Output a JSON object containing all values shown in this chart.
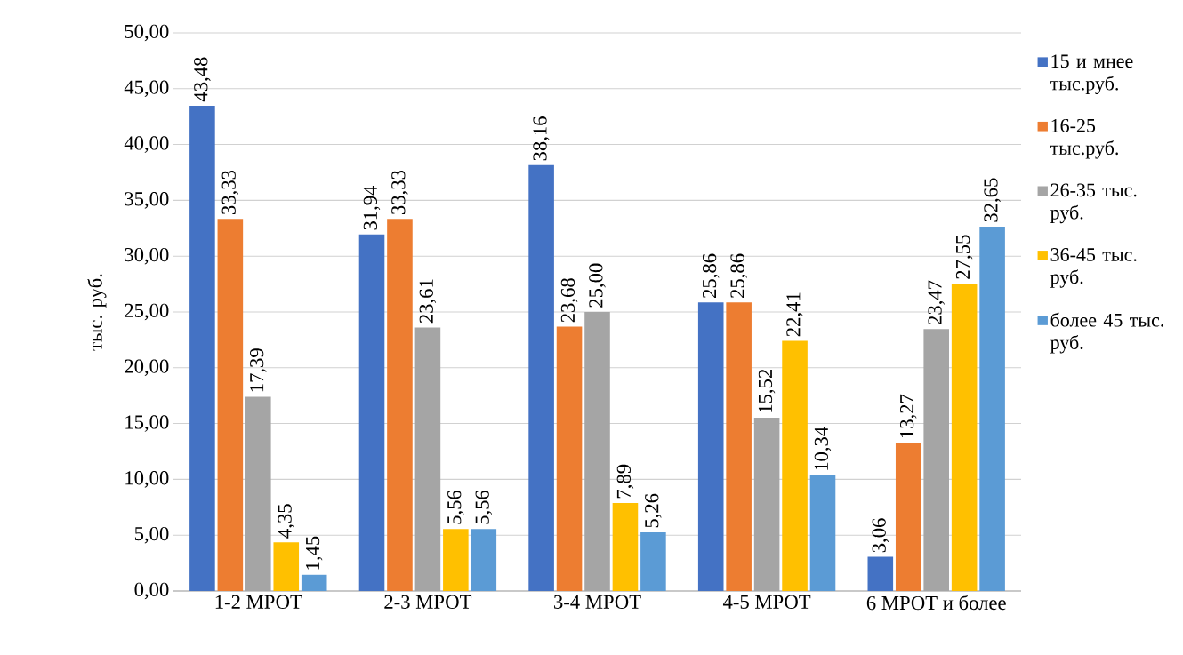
{
  "chart_data": {
    "type": "bar",
    "ylabel": "тыс. руб.",
    "categories": [
      "1-2 МРОТ",
      "2-3 МРОТ",
      "3-4 МРОТ",
      "4-5 МРОТ",
      "6 МРОТ и более"
    ],
    "series": [
      {
        "name": "15 и мнее тыс.руб.",
        "color": "#4472c4",
        "values": [
          43.48,
          31.94,
          38.16,
          25.86,
          3.06
        ],
        "value_labels": [
          "43,48",
          "31,94",
          "38,16",
          "25,86",
          "3,06"
        ]
      },
      {
        "name": "16-25 тыс.руб.",
        "color": "#ed7d31",
        "values": [
          33.33,
          33.33,
          23.68,
          25.86,
          13.27
        ],
        "value_labels": [
          "33,33",
          "33,33",
          "23,68",
          "25,86",
          "13,27"
        ]
      },
      {
        "name": "26-35 тыс. руб.",
        "color": "#a5a5a5",
        "values": [
          17.39,
          23.61,
          25.0,
          15.52,
          23.47
        ],
        "value_labels": [
          "17,39",
          "23,61",
          "25,00",
          "15,52",
          "23,47"
        ]
      },
      {
        "name": "36-45 тыс. руб.",
        "color": "#ffc000",
        "values": [
          4.35,
          5.56,
          7.89,
          22.41,
          27.55
        ],
        "value_labels": [
          "4,35",
          "5,56",
          "7,89",
          "22,41",
          "27,55"
        ]
      },
      {
        "name": "более 45 тыс. руб.",
        "color": "#5b9bd5",
        "values": [
          1.45,
          5.56,
          5.26,
          10.34,
          32.65
        ],
        "value_labels": [
          "1,45",
          "5,56",
          "5,26",
          "10,34",
          "32,65"
        ]
      }
    ],
    "ylim": [
      0,
      50
    ],
    "yticks": [
      {
        "value": 0,
        "label": "0,00"
      },
      {
        "value": 5,
        "label": "5,00"
      },
      {
        "value": 10,
        "label": "10,00"
      },
      {
        "value": 15,
        "label": "15,00"
      },
      {
        "value": 20,
        "label": "20,00"
      },
      {
        "value": 25,
        "label": "25,00"
      },
      {
        "value": 30,
        "label": "30,00"
      },
      {
        "value": 35,
        "label": "35,00"
      },
      {
        "value": 40,
        "label": "40,00"
      },
      {
        "value": 45,
        "label": "45,00"
      },
      {
        "value": 50,
        "label": "50,00"
      }
    ],
    "grid": "y",
    "legend": "right"
  }
}
